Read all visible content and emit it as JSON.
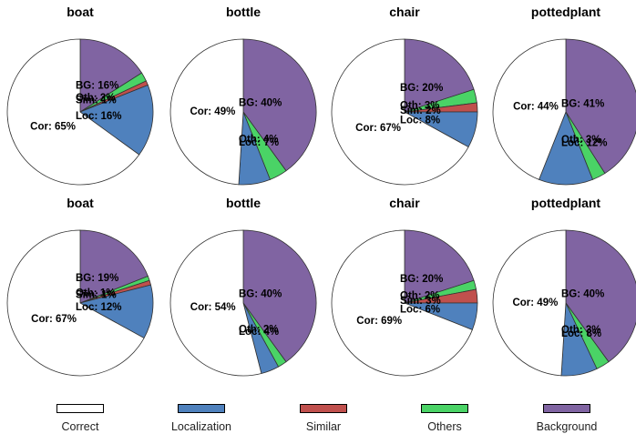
{
  "chart_data": [
    {
      "type": "pie",
      "title": "boat",
      "slices": [
        {
          "category": "Background",
          "value": 16,
          "label": "BG: 16%"
        },
        {
          "category": "Others",
          "value": 2,
          "label": "Oth: 2%"
        },
        {
          "category": "Similar",
          "value": 1,
          "label": "Sim: 1%"
        },
        {
          "category": "Localization",
          "value": 16,
          "label": "Loc: 16%"
        },
        {
          "category": "Correct",
          "value": 65,
          "label": "Cor: 65%"
        }
      ]
    },
    {
      "type": "pie",
      "title": "bottle",
      "slices": [
        {
          "category": "Background",
          "value": 40,
          "label": "BG: 40%"
        },
        {
          "category": "Others",
          "value": 4,
          "label": "Oth: 4%"
        },
        {
          "category": "Similar",
          "value": 0,
          "label": ""
        },
        {
          "category": "Localization",
          "value": 7,
          "label": "Loc: 7%"
        },
        {
          "category": "Correct",
          "value": 49,
          "label": "Cor: 49%"
        }
      ]
    },
    {
      "type": "pie",
      "title": "chair",
      "slices": [
        {
          "category": "Background",
          "value": 20,
          "label": "BG: 20%"
        },
        {
          "category": "Others",
          "value": 3,
          "label": "Oth: 3%"
        },
        {
          "category": "Similar",
          "value": 2,
          "label": "Sim: 2%"
        },
        {
          "category": "Localization",
          "value": 8,
          "label": "Loc: 8%"
        },
        {
          "category": "Correct",
          "value": 67,
          "label": "Cor: 67%"
        }
      ]
    },
    {
      "type": "pie",
      "title": "pottedplant",
      "slices": [
        {
          "category": "Background",
          "value": 41,
          "label": "BG: 41%"
        },
        {
          "category": "Others",
          "value": 3,
          "label": "Oth: 3%"
        },
        {
          "category": "Similar",
          "value": 0,
          "label": ""
        },
        {
          "category": "Localization",
          "value": 12,
          "label": "Loc: 12%"
        },
        {
          "category": "Correct",
          "value": 44,
          "label": "Cor: 44%"
        }
      ]
    },
    {
      "type": "pie",
      "title": "boat",
      "slices": [
        {
          "category": "Background",
          "value": 19,
          "label": "BG: 19%"
        },
        {
          "category": "Others",
          "value": 1,
          "label": "Oth: 1%"
        },
        {
          "category": "Similar",
          "value": 1,
          "label": "Sim: 1%"
        },
        {
          "category": "Localization",
          "value": 12,
          "label": "Loc: 12%"
        },
        {
          "category": "Correct",
          "value": 67,
          "label": "Cor: 67%"
        }
      ]
    },
    {
      "type": "pie",
      "title": "bottle",
      "slices": [
        {
          "category": "Background",
          "value": 40,
          "label": "BG: 40%"
        },
        {
          "category": "Others",
          "value": 2,
          "label": "Oth: 2%"
        },
        {
          "category": "Similar",
          "value": 0,
          "label": ""
        },
        {
          "category": "Localization",
          "value": 4,
          "label": "Loc: 4%"
        },
        {
          "category": "Correct",
          "value": 54,
          "label": "Cor: 54%"
        }
      ]
    },
    {
      "type": "pie",
      "title": "chair",
      "slices": [
        {
          "category": "Background",
          "value": 20,
          "label": "BG: 20%"
        },
        {
          "category": "Others",
          "value": 2,
          "label": "Oth: 2%"
        },
        {
          "category": "Similar",
          "value": 3,
          "label": "Sim: 3%"
        },
        {
          "category": "Localization",
          "value": 6,
          "label": "Loc: 6%"
        },
        {
          "category": "Correct",
          "value": 69,
          "label": "Cor: 69%"
        }
      ]
    },
    {
      "type": "pie",
      "title": "pottedplant",
      "slices": [
        {
          "category": "Background",
          "value": 40,
          "label": "BG: 40%"
        },
        {
          "category": "Others",
          "value": 3,
          "label": "Oth: 3%"
        },
        {
          "category": "Similar",
          "value": 0,
          "label": ""
        },
        {
          "category": "Localization",
          "value": 8,
          "label": "Loc: 8%"
        },
        {
          "category": "Correct",
          "value": 49,
          "label": "Cor: 49%"
        }
      ]
    }
  ],
  "legend": [
    {
      "label": "Correct",
      "category": "Correct"
    },
    {
      "label": "Localization",
      "category": "Localization"
    },
    {
      "label": "Similar",
      "category": "Similar"
    },
    {
      "label": "Others",
      "category": "Others"
    },
    {
      "label": "Background",
      "category": "Background"
    }
  ],
  "colors": {
    "Correct": "#ffffff",
    "Localization": "#4f81bd",
    "Similar": "#c0504d",
    "Others": "#4ad366",
    "Background": "#8064a2",
    "outline": "#333333"
  }
}
